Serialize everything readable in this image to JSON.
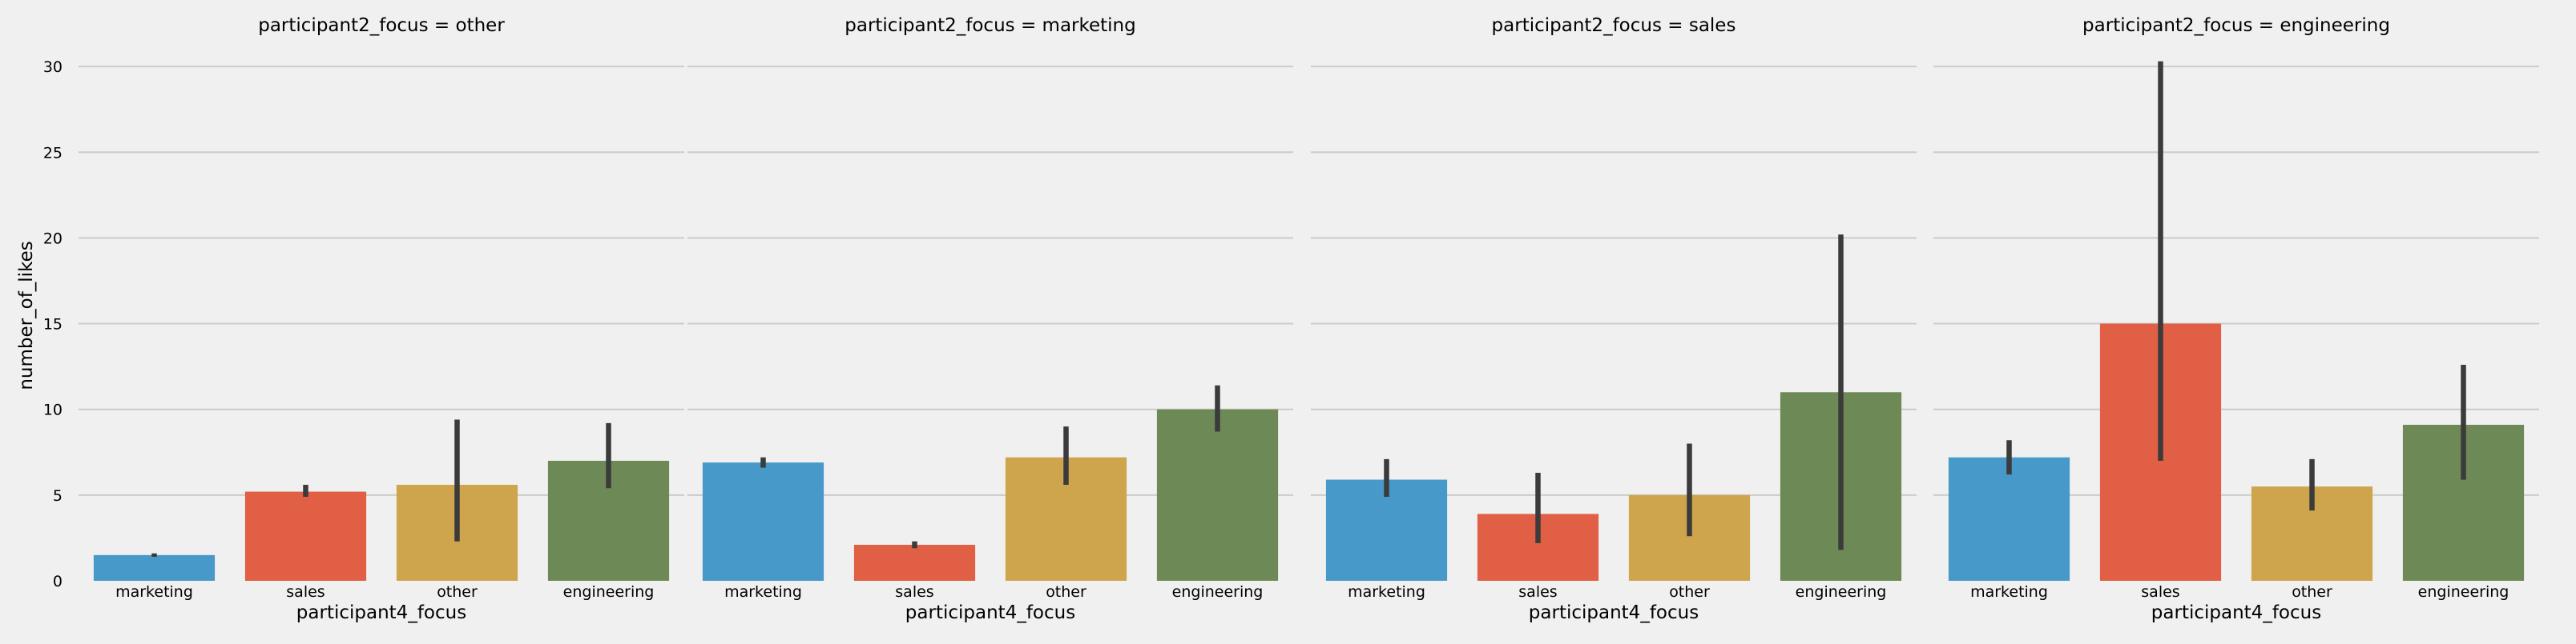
{
  "chart_data": {
    "type": "bar",
    "layout": "facet-grid (4 columns, shared y axis)",
    "facet_titles": [
      "participant2_focus = other",
      "participant2_focus = marketing",
      "participant2_focus = sales",
      "participant2_focus = engineering"
    ],
    "categories": [
      "marketing",
      "sales",
      "other",
      "engineering"
    ],
    "xlabel": "participant4_focus",
    "ylabel": "number_of_likes",
    "ylim": [
      0,
      31.5
    ],
    "yticks": [
      0,
      5,
      10,
      15,
      20,
      25,
      30
    ],
    "grid": "horizontal",
    "colors": {
      "marketing": "#4699c9",
      "sales": "#e05f45",
      "other": "#cea54d",
      "engineering": "#6d8a56",
      "error_bar": "#3b3b3b",
      "grid": "#cbcbcb",
      "background": "#f0f0f0"
    },
    "panels": [
      {
        "facet": "other",
        "values": [
          1.5,
          5.2,
          5.6,
          7.0
        ],
        "ci": [
          [
            1.4,
            1.6
          ],
          [
            4.9,
            5.6
          ],
          [
            2.3,
            9.4
          ],
          [
            5.4,
            9.2
          ]
        ]
      },
      {
        "facet": "marketing",
        "values": [
          6.9,
          2.1,
          7.2,
          10.0
        ],
        "ci": [
          [
            6.6,
            7.2
          ],
          [
            1.9,
            2.3
          ],
          [
            5.6,
            9.0
          ],
          [
            8.7,
            11.4
          ]
        ]
      },
      {
        "facet": "sales",
        "values": [
          5.9,
          3.9,
          5.0,
          11.0
        ],
        "ci": [
          [
            4.9,
            7.1
          ],
          [
            2.2,
            6.3
          ],
          [
            2.6,
            8.0
          ],
          [
            1.8,
            20.2
          ]
        ]
      },
      {
        "facet": "engineering",
        "values": [
          7.2,
          15.0,
          5.5,
          9.1
        ],
        "ci": [
          [
            6.2,
            8.2
          ],
          [
            7.0,
            30.3
          ],
          [
            4.1,
            7.1
          ],
          [
            5.9,
            12.6
          ]
        ]
      }
    ]
  }
}
